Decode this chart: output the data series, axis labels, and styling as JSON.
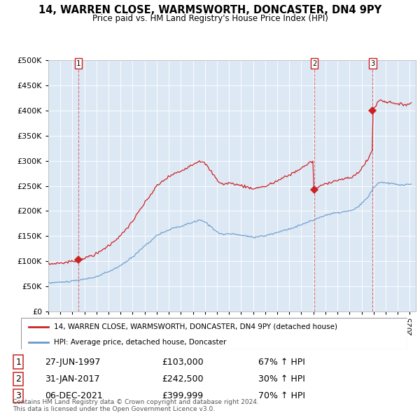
{
  "title": "14, WARREN CLOSE, WARMSWORTH, DONCASTER, DN4 9PY",
  "subtitle": "Price paid vs. HM Land Registry's House Price Index (HPI)",
  "legend_label_red": "14, WARREN CLOSE, WARMSWORTH, DONCASTER, DN4 9PY (detached house)",
  "legend_label_blue": "HPI: Average price, detached house, Doncaster",
  "ylabel_ticks": [
    0,
    50000,
    100000,
    150000,
    200000,
    250000,
    300000,
    350000,
    400000,
    450000,
    500000
  ],
  "xlim_start": 1995.0,
  "xlim_end": 2025.5,
  "ylim": [
    0,
    500000
  ],
  "sale_points": [
    {
      "num": 1,
      "year": 1997.5,
      "price": 103000,
      "date": "27-JUN-1997",
      "price_str": "£103,000",
      "pct": "67% ↑ HPI"
    },
    {
      "num": 2,
      "year": 2017.08,
      "price": 242500,
      "date": "31-JAN-2017",
      "price_str": "£242,500",
      "pct": "30% ↑ HPI"
    },
    {
      "num": 3,
      "year": 2021.92,
      "price": 399999,
      "date": "06-DEC-2021",
      "price_str": "£399,999",
      "pct": "70% ↑ HPI"
    }
  ],
  "background_color": "#ffffff",
  "plot_bg": "#dde8f5",
  "red_color": "#cc2222",
  "blue_color": "#6699cc",
  "grid_color": "#ffffff",
  "footer_text": "Contains HM Land Registry data © Crown copyright and database right 2024.\nThis data is licensed under the Open Government Licence v3.0."
}
